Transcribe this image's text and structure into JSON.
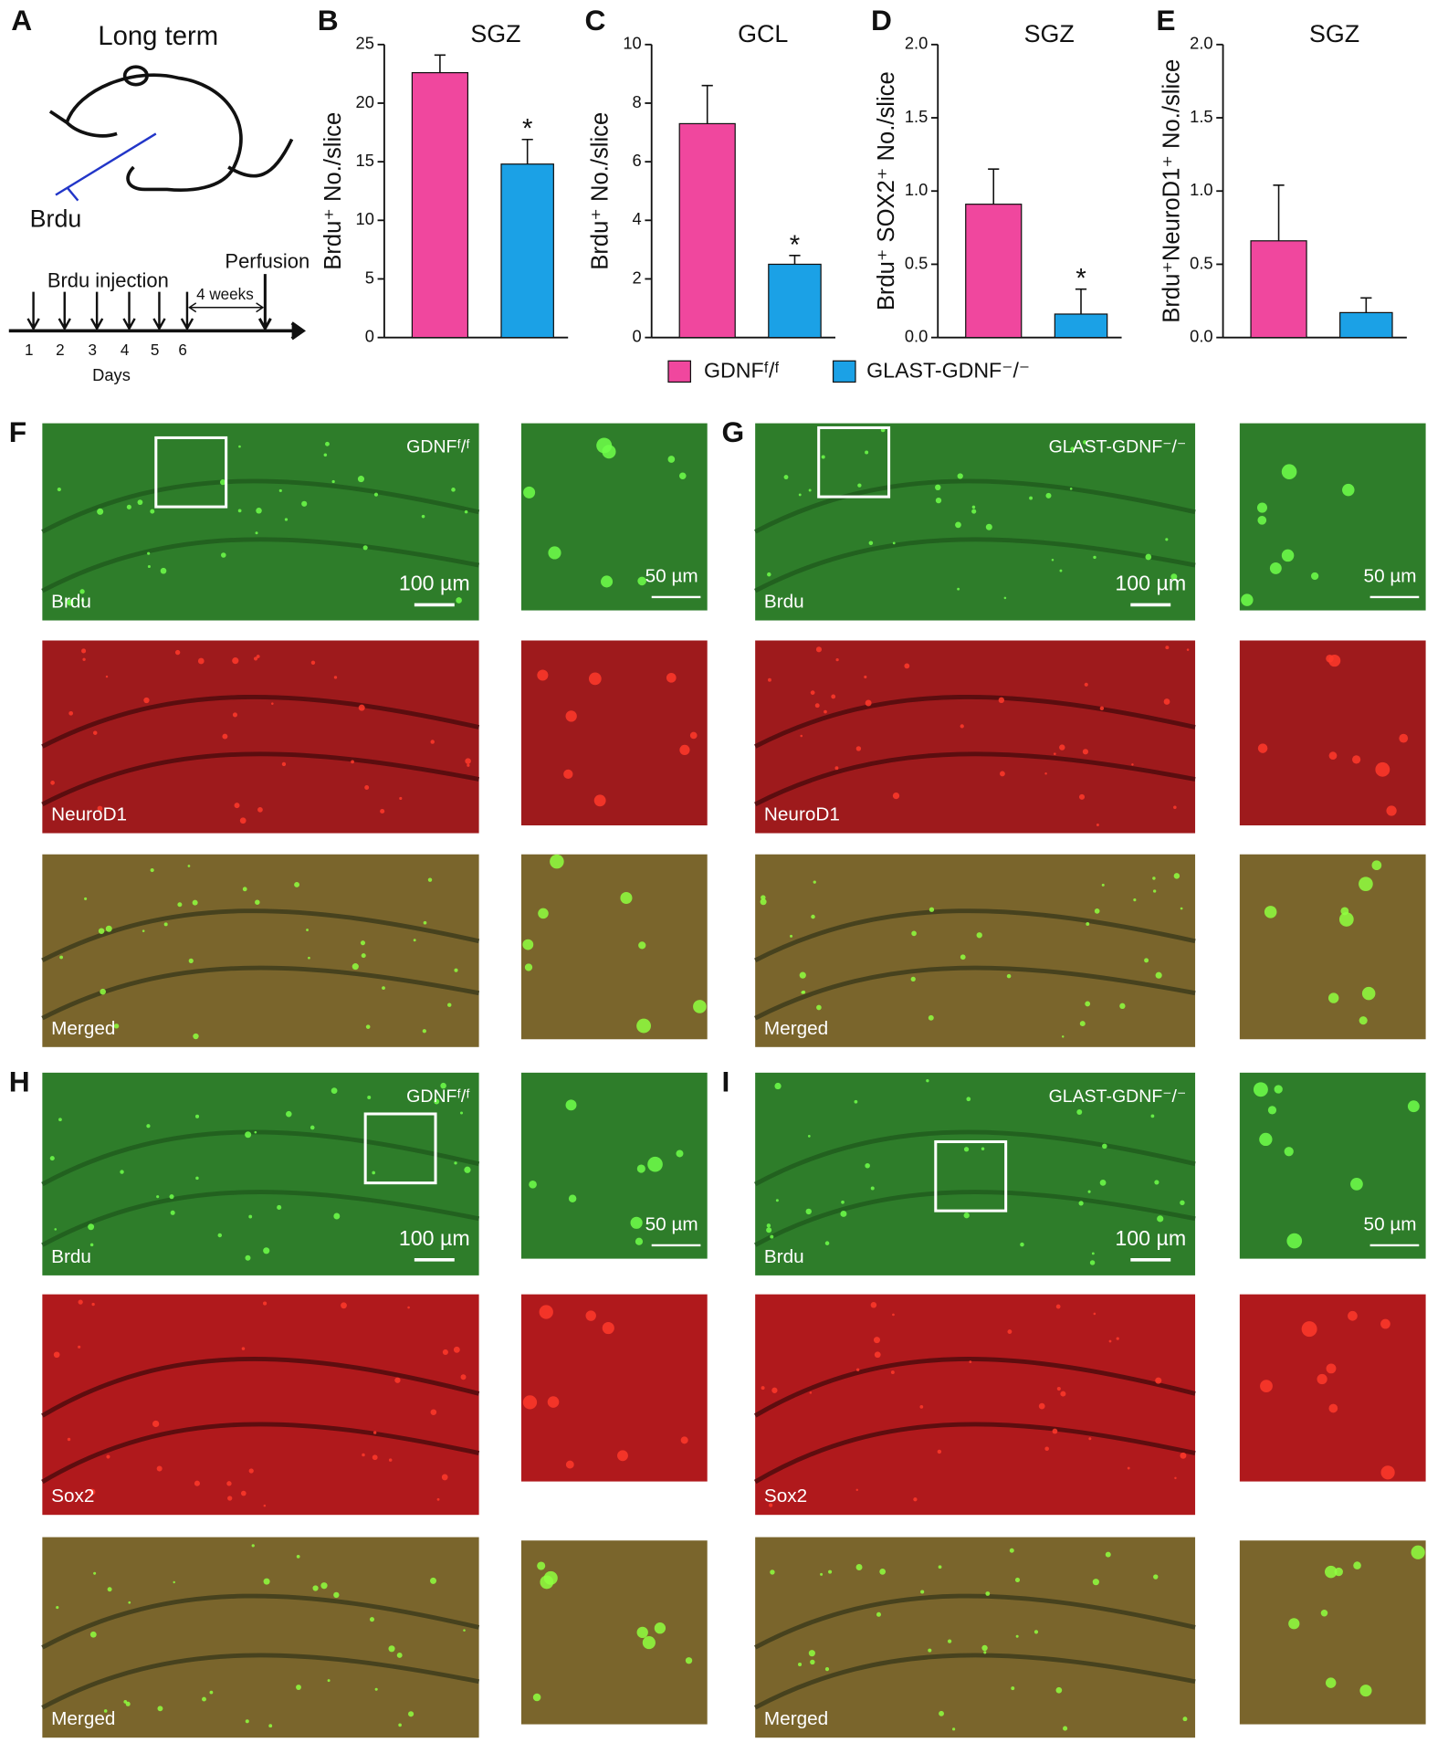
{
  "panel_a": {
    "label": "A",
    "title": "Long term",
    "drug": "Brdu",
    "injection": "Brdu injection",
    "perfusion": "Perfusion",
    "interval": "4 weeks",
    "days": [
      "1",
      "2",
      "3",
      "4",
      "5",
      "6"
    ],
    "axis_label": "Days"
  },
  "legend": [
    {
      "name": "GDNFᶠ/ᶠ",
      "color": "#f0479e"
    },
    {
      "name": "GLAST-GDNF⁻/⁻",
      "color": "#1ba1e6"
    }
  ],
  "chart_data": [
    {
      "type": "bar",
      "panel_label": "B",
      "title": "SGZ",
      "ylabel": "Brdu⁺ No./slice",
      "categories": [
        null,
        null
      ],
      "values": [
        22.6,
        14.8
      ],
      "errors": [
        1.5,
        2.1
      ],
      "significance": [
        null,
        "*"
      ],
      "ylim": [
        0,
        25
      ],
      "yticks": [
        0,
        5,
        10,
        15,
        20,
        25
      ]
    },
    {
      "type": "bar",
      "panel_label": "C",
      "title": "GCL",
      "ylabel": "Brdu⁺ No./slice",
      "categories": [
        null,
        null
      ],
      "values": [
        7.3,
        2.5
      ],
      "errors": [
        1.3,
        0.3
      ],
      "significance": [
        null,
        "*"
      ],
      "ylim": [
        0,
        10
      ],
      "yticks": [
        0,
        2,
        4,
        6,
        8,
        10
      ]
    },
    {
      "type": "bar",
      "panel_label": "D",
      "title": "SGZ",
      "ylabel": "Brdu⁺ SOX2⁺ No./slice",
      "categories": [
        null,
        null
      ],
      "values": [
        0.91,
        0.16
      ],
      "errors": [
        0.24,
        0.17
      ],
      "significance": [
        null,
        "*"
      ],
      "ylim": [
        0,
        2
      ],
      "yticks": [
        {
          "value": 0,
          "label": "0.0"
        },
        {
          "value": 0.5,
          "label": "0.5"
        },
        {
          "value": 1,
          "label": "1.0"
        },
        {
          "value": 1.5,
          "label": "1.5"
        },
        {
          "value": 2,
          "label": "2.0"
        }
      ]
    },
    {
      "type": "bar",
      "panel_label": "E",
      "title": "SGZ",
      "ylabel": "Brdu⁺NeuroD1⁺ No./slice",
      "categories": [
        null,
        null
      ],
      "values": [
        0.66,
        0.17
      ],
      "errors": [
        0.38,
        0.1
      ],
      "significance": [
        null,
        null
      ],
      "ylim": [
        0,
        2
      ],
      "yticks": [
        {
          "value": 0,
          "label": "0.0"
        },
        {
          "value": 0.5,
          "label": "0.5"
        },
        {
          "value": 1,
          "label": "1.0"
        },
        {
          "value": 1.5,
          "label": "1.5"
        },
        {
          "value": 2,
          "label": "2.0"
        }
      ]
    }
  ],
  "image_panels": [
    {
      "label": "F",
      "genotype": "GDNFᶠ/ᶠ",
      "channels": [
        "Brdu",
        "NeuroD1",
        "Merged"
      ],
      "scale_big": "100 µm",
      "scale_small": "50 µm"
    },
    {
      "label": "G",
      "genotype": "GLAST-GDNF⁻/⁻",
      "channels": [
        "Brdu",
        "NeuroD1",
        "Merged"
      ],
      "scale_big": "100 µm",
      "scale_small": "50 µm"
    },
    {
      "label": "H",
      "genotype": "GDNFᶠ/ᶠ",
      "channels": [
        "Brdu",
        "Sox2",
        "Merged"
      ],
      "scale_big": "100 µm",
      "scale_small": "50 µm"
    },
    {
      "label": "I",
      "genotype": "GLAST-GDNF⁻/⁻",
      "channels": [
        "Brdu",
        "Sox2",
        "Merged"
      ],
      "scale_big": "100 µm",
      "scale_small": "50 µm"
    }
  ]
}
